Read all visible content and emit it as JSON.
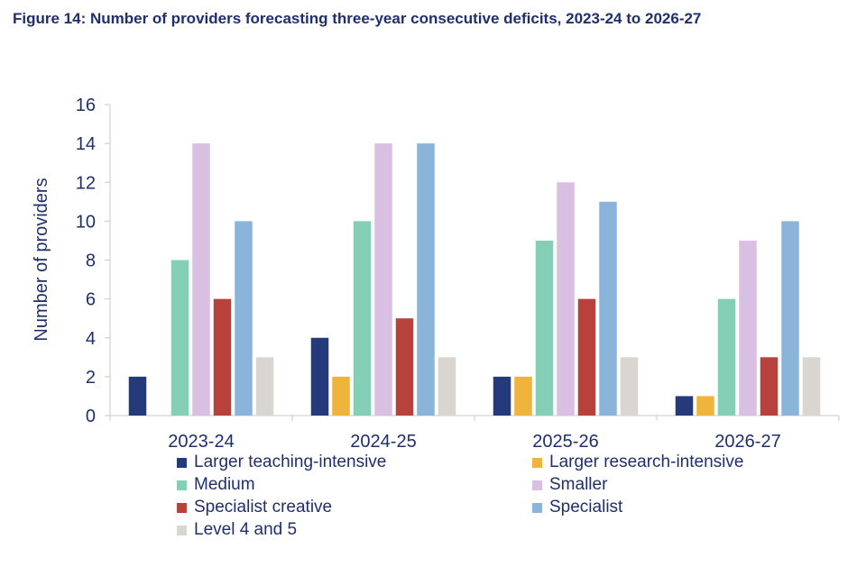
{
  "title": "Figure 14: Number of providers forecasting three-year consecutive deficits, 2023-24 to 2026-27",
  "chart_data": {
    "type": "bar",
    "title": "Figure 14: Number of providers forecasting three-year consecutive deficits, 2023-24 to 2026-27",
    "xlabel": "",
    "ylabel": "Number of providers",
    "ylim": [
      0,
      16
    ],
    "yticks": [
      0,
      2,
      4,
      6,
      8,
      10,
      12,
      14,
      16
    ],
    "grid": false,
    "legend_position": "bottom",
    "categories": [
      "2023-24",
      "2024-25",
      "2025-26",
      "2026-27"
    ],
    "series": [
      {
        "name": "Larger teaching-intensive",
        "color": "#253a7a",
        "values": [
          2,
          4,
          2,
          1
        ]
      },
      {
        "name": "Larger research-intensive",
        "color": "#f0b43c",
        "values": [
          0,
          2,
          2,
          1
        ]
      },
      {
        "name": "Medium",
        "color": "#84cfb6",
        "values": [
          8,
          10,
          9,
          6
        ]
      },
      {
        "name": "Smaller",
        "color": "#d9bfe2",
        "values": [
          14,
          14,
          12,
          9
        ]
      },
      {
        "name": "Specialist creative",
        "color": "#b8413c",
        "values": [
          6,
          5,
          6,
          3
        ]
      },
      {
        "name": "Specialist",
        "color": "#8ab4d9",
        "values": [
          10,
          14,
          11,
          10
        ]
      },
      {
        "name": "Level 4 and 5",
        "color": "#d9d6d1",
        "values": [
          3,
          3,
          3,
          3
        ]
      }
    ]
  }
}
